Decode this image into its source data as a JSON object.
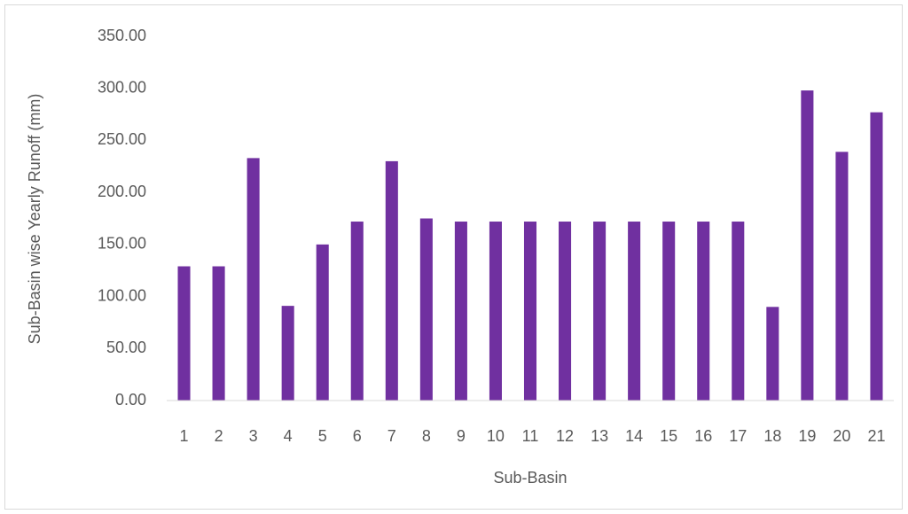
{
  "chart_data": {
    "type": "bar",
    "x_label": "Sub-Basin",
    "y_label": "Sub-Basin wise Yearly Runoff (mm)",
    "categories": [
      "1",
      "2",
      "3",
      "4",
      "5",
      "6",
      "7",
      "8",
      "9",
      "10",
      "11",
      "12",
      "13",
      "14",
      "15",
      "16",
      "17",
      "18",
      "19",
      "20",
      "21"
    ],
    "values": [
      129,
      129,
      233,
      91,
      150,
      172,
      230,
      175,
      172,
      172,
      172,
      172,
      172,
      172,
      172,
      172,
      172,
      90,
      298,
      239,
      277
    ],
    "color": "#7030a0",
    "ylim": [
      0,
      350
    ],
    "yticks": [
      {
        "value": 0,
        "label": "0.00"
      },
      {
        "value": 50,
        "label": "50.00"
      },
      {
        "value": 100,
        "label": "100.00"
      },
      {
        "value": 150,
        "label": "150.00"
      },
      {
        "value": 200,
        "label": "200.00"
      },
      {
        "value": 250,
        "label": "250.00"
      },
      {
        "value": 300,
        "label": "300.00"
      },
      {
        "value": 350,
        "label": "350.00"
      }
    ],
    "grid": false
  }
}
